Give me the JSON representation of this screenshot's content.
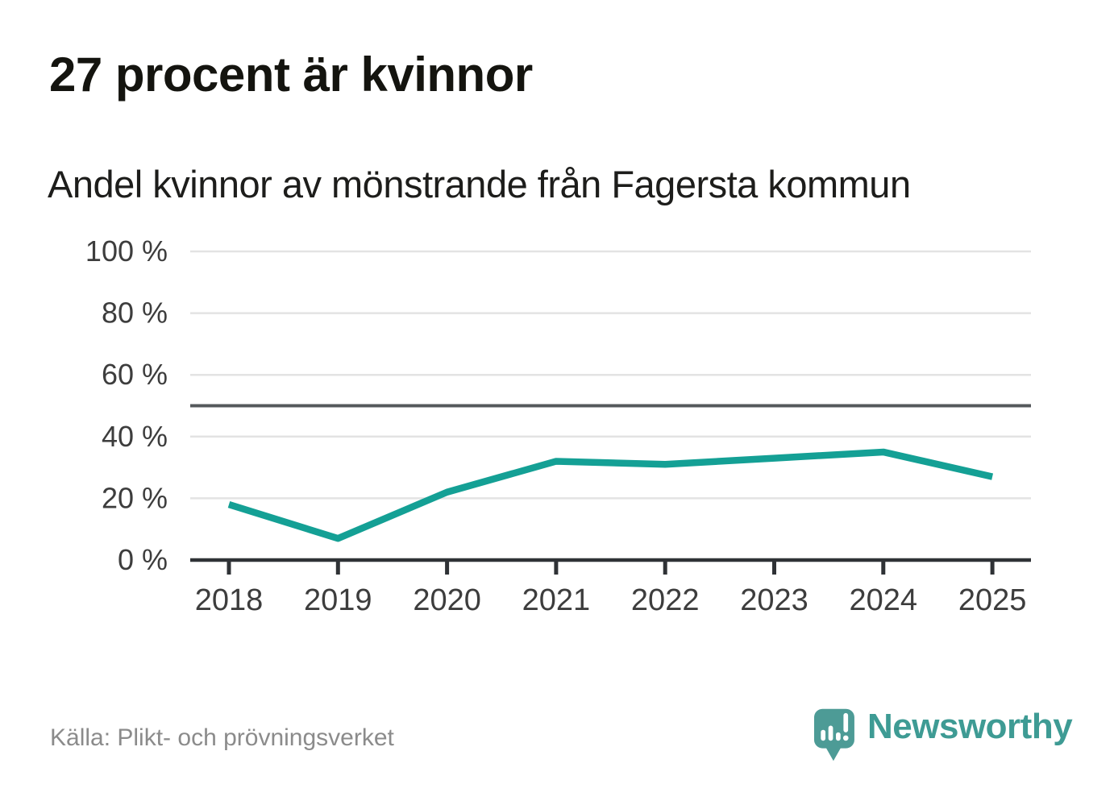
{
  "title": "27 procent är kvinnor",
  "subtitle": "Andel kvinnor av mönstrande från Fagersta kommun",
  "source": "Källa: Plikt- och prövningsverket",
  "brand": {
    "name": "Newsworthy",
    "icon": "newsworthy-bubble-barchart-icon",
    "icon_color": "#4d9b96",
    "text_color": "#3e9b94"
  },
  "chart_data": {
    "type": "line",
    "title": "27 procent är kvinnor",
    "subtitle": "Andel kvinnor av mönstrande från Fagersta kommun",
    "x": [
      2018,
      2019,
      2020,
      2021,
      2022,
      2023,
      2024,
      2025
    ],
    "series": [
      {
        "name": "Andel kvinnor av mönstrande",
        "values": [
          18,
          7,
          22,
          32,
          31,
          33,
          35,
          27
        ]
      }
    ],
    "unit": "%",
    "ylim": [
      0,
      100
    ],
    "yticks": [
      0,
      20,
      40,
      60,
      80,
      100
    ],
    "ytick_format": "{v} %",
    "reference_line": 50,
    "grid": true,
    "legend": false,
    "line_color": "#14a095",
    "reference_color": "#55595c",
    "axis_color": "#2f3236",
    "gridline_color": "#e3e3e3",
    "tick_label_color": "#3d3d3d"
  }
}
